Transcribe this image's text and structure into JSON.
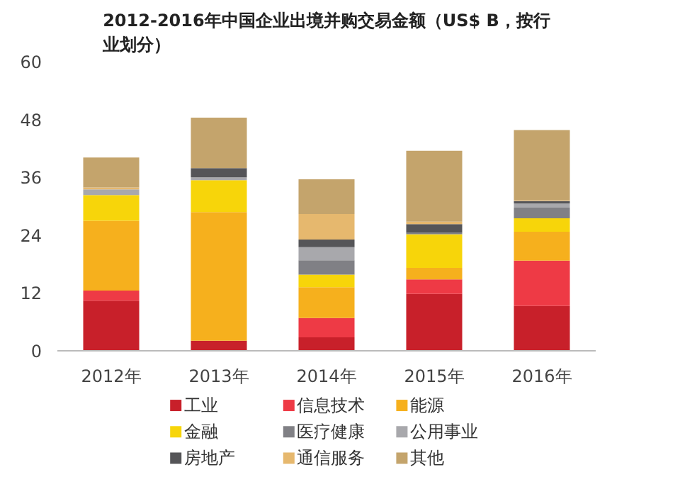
{
  "chart_data": {
    "type": "bar",
    "stacked": true,
    "title": "2012-2016年中国企业出境并购交易金额（US$ B，按行业划分）",
    "categories": [
      "2012年",
      "2013年",
      "2014年",
      "2015年",
      "2016年"
    ],
    "series": [
      {
        "name": "工业",
        "color": "#c8202a",
        "values": [
          10.4,
          2.1,
          2.8,
          11.8,
          9.3
        ]
      },
      {
        "name": "信息技术",
        "color": "#ee3a45",
        "values": [
          2.1,
          0,
          4.0,
          3.0,
          9.4
        ]
      },
      {
        "name": "能源",
        "color": "#f6b01d",
        "values": [
          14.5,
          26.7,
          6.4,
          2.4,
          6.0
        ]
      },
      {
        "name": "金融",
        "color": "#f7d50a",
        "values": [
          5.3,
          6.6,
          2.6,
          7.0,
          2.8
        ]
      },
      {
        "name": "医疗健康",
        "color": "#808085",
        "values": [
          0,
          0,
          3.0,
          0.3,
          2.2
        ]
      },
      {
        "name": "公用事业",
        "color": "#a8a8ac",
        "values": [
          1.2,
          0.6,
          2.7,
          0,
          0.9
        ]
      },
      {
        "name": "房地产",
        "color": "#555558",
        "values": [
          0,
          1.9,
          1.6,
          1.8,
          0.5
        ]
      },
      {
        "name": "通信服务",
        "color": "#e6b86e",
        "values": [
          0.4,
          0,
          5.3,
          0.5,
          0.2
        ]
      },
      {
        "name": "其他",
        "color": "#c4a46c",
        "values": [
          6.2,
          10.5,
          7.2,
          14.7,
          14.5
        ]
      }
    ],
    "ylim": [
      0,
      60
    ],
    "yticks": [
      0,
      12,
      24,
      36,
      48,
      60
    ],
    "grid": false,
    "legend": "bottom"
  }
}
